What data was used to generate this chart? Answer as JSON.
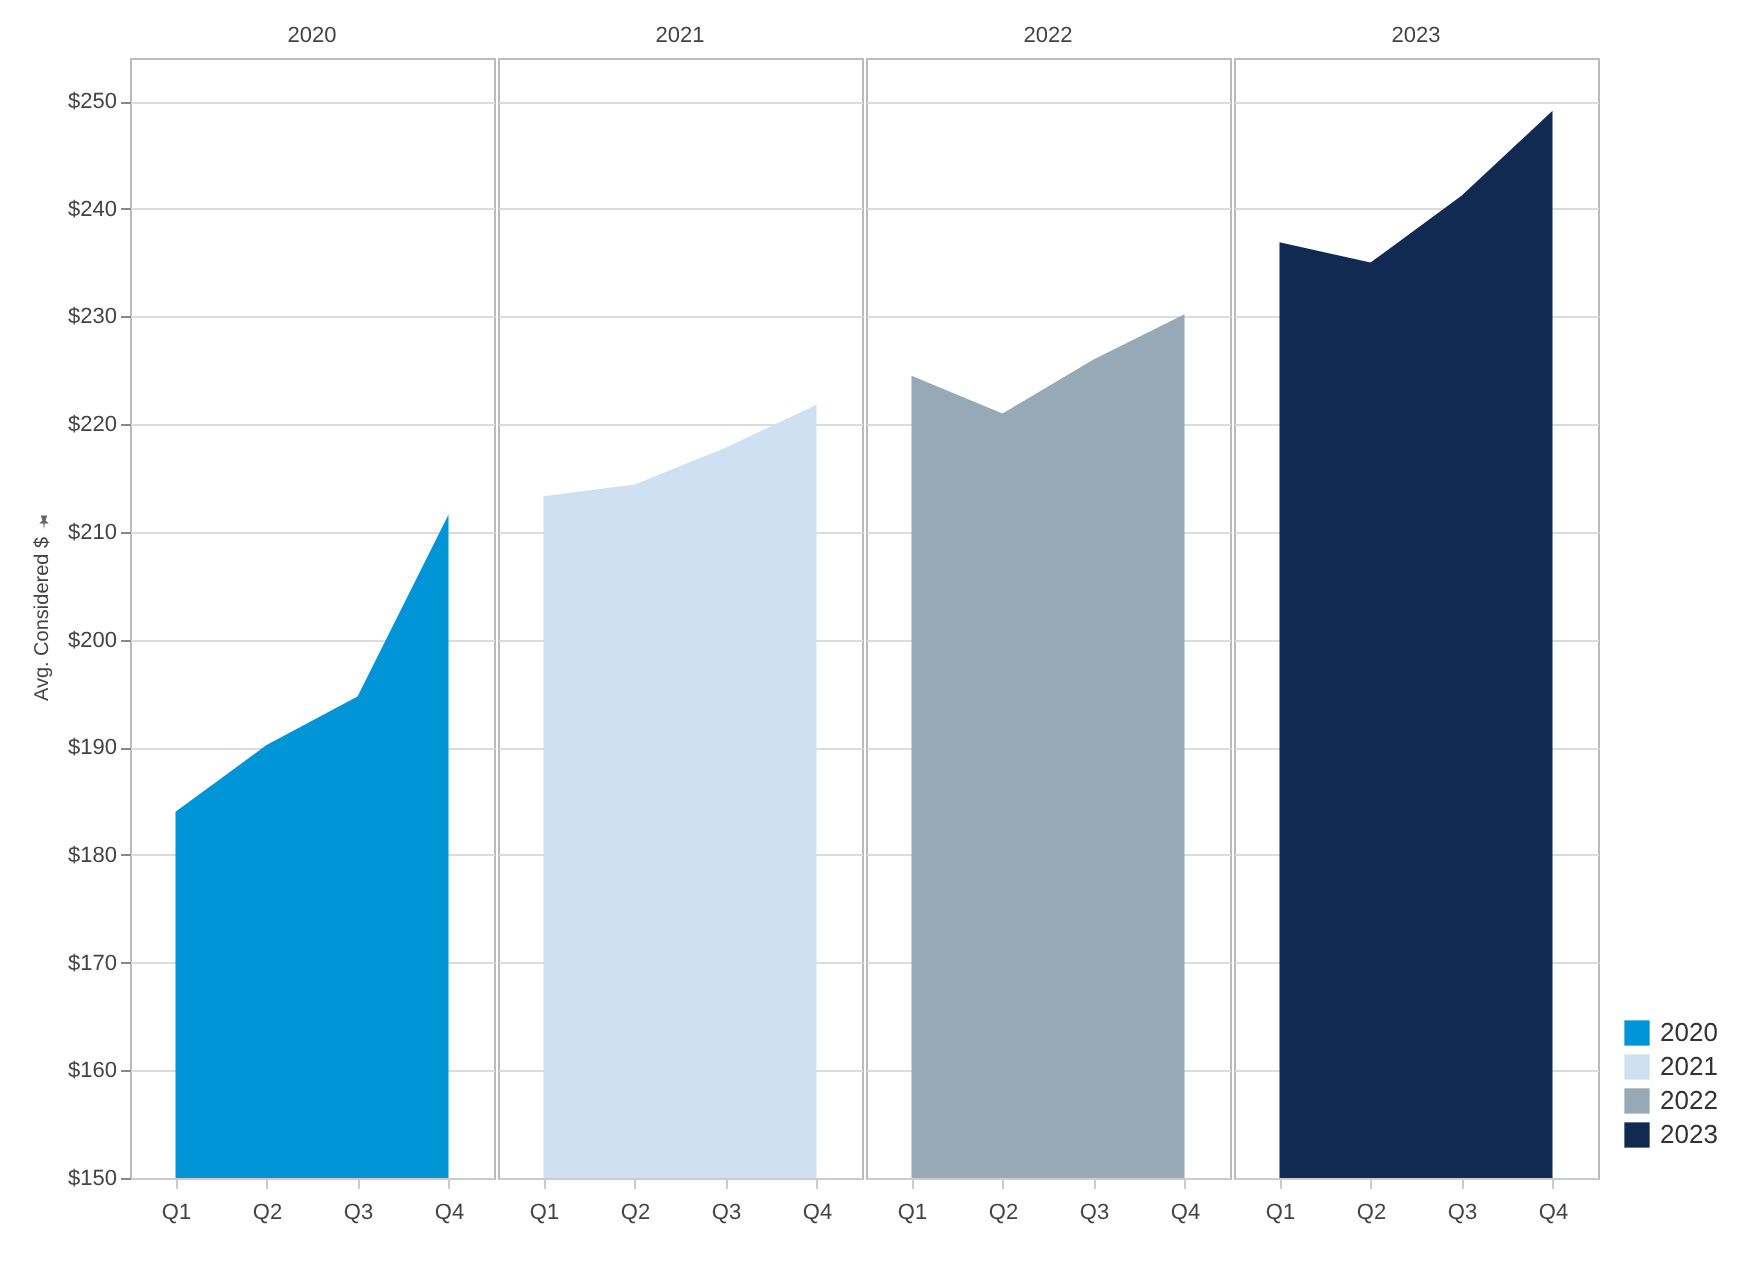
{
  "chart_data": [
    {
      "type": "area",
      "title": "2020",
      "ylabel": "Avg. Considered $",
      "categories": [
        "Q1",
        "Q2",
        "Q3",
        "Q4"
      ],
      "ylim": [
        150,
        254
      ],
      "yticks": [
        {
          "value": 150,
          "label": "$150"
        },
        {
          "value": 160,
          "label": "$160"
        },
        {
          "value": 170,
          "label": "$170"
        },
        {
          "value": 180,
          "label": "$180"
        },
        {
          "value": 190,
          "label": "$190"
        },
        {
          "value": 200,
          "label": "$200"
        },
        {
          "value": 210,
          "label": "$210"
        },
        {
          "value": 220,
          "label": "$220"
        },
        {
          "value": 230,
          "label": "$230"
        },
        {
          "value": 240,
          "label": "$240"
        },
        {
          "value": 250,
          "label": "$250"
        }
      ],
      "grid": "y",
      "series": [
        {
          "name": "2020",
          "color": "#0095d6",
          "values": [
            184,
            190.2,
            194.7,
            211.6
          ]
        }
      ]
    },
    {
      "type": "area",
      "title": "2021",
      "categories": [
        "Q1",
        "Q2",
        "Q3",
        "Q4"
      ],
      "ylim": [
        150,
        254
      ],
      "yticks": [
        150,
        160,
        170,
        180,
        190,
        200,
        210,
        220,
        230,
        240,
        250
      ],
      "grid": "y",
      "tick_labels": "x",
      "series": [
        {
          "name": "2021",
          "color": "#cfe0f2",
          "values": [
            213.3,
            214.4,
            217.8,
            221.8
          ]
        }
      ]
    },
    {
      "type": "area",
      "title": "2022",
      "categories": [
        "Q1",
        "Q2",
        "Q3",
        "Q4"
      ],
      "ylim": [
        150,
        254
      ],
      "yticks": [
        150,
        160,
        170,
        180,
        190,
        200,
        210,
        220,
        230,
        240,
        250
      ],
      "grid": "y",
      "tick_labels": "x",
      "series": [
        {
          "name": "2022",
          "color": "#97a9b6",
          "values": [
            224.5,
            221,
            226,
            230.2
          ]
        }
      ]
    },
    {
      "type": "area",
      "title": "2023",
      "categories": [
        "Q1",
        "Q2",
        "Q3",
        "Q4"
      ],
      "ylim": [
        150,
        254
      ],
      "yticks": [
        150,
        160,
        170,
        180,
        190,
        200,
        210,
        220,
        230,
        240,
        250
      ],
      "grid": "y",
      "tick_labels": "x",
      "legend": "bottom right",
      "series": [
        {
          "name": "2023",
          "color": "#112a52",
          "values": [
            236.9,
            235,
            241.2,
            249.1
          ]
        }
      ]
    }
  ]
}
